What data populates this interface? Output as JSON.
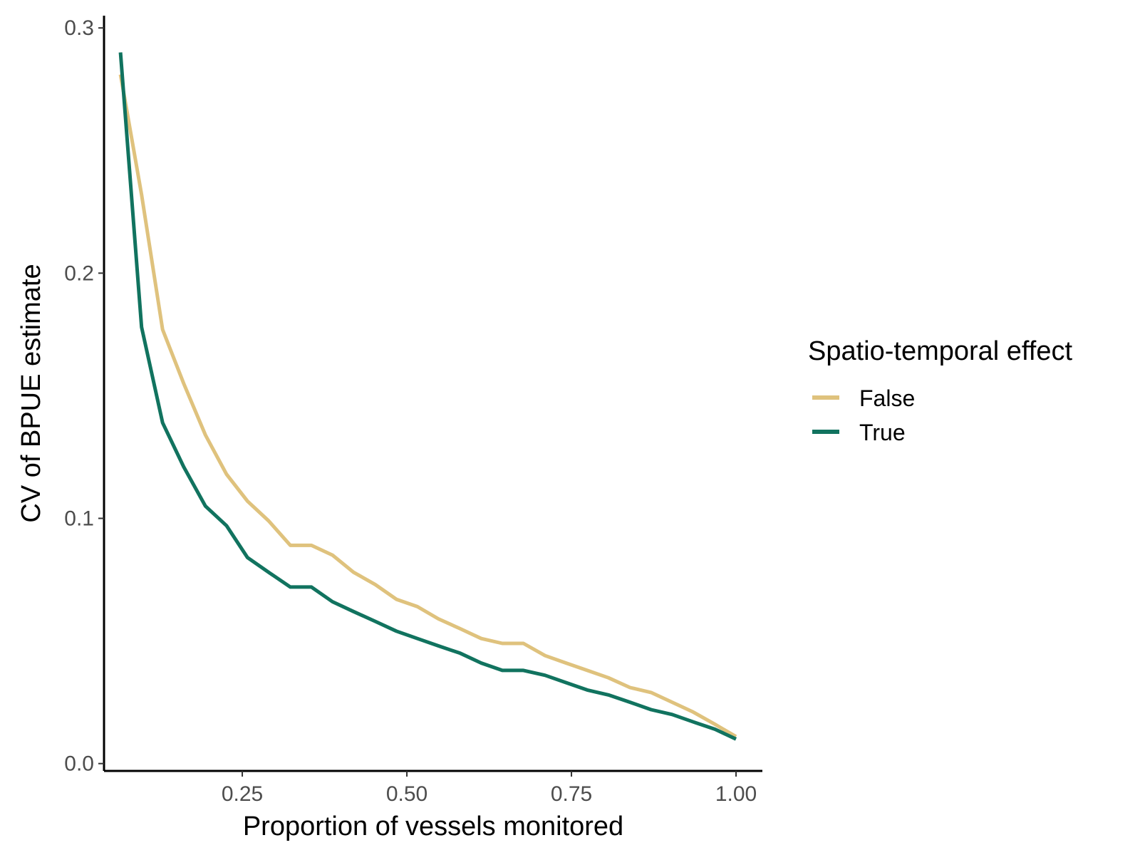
{
  "chart_data": {
    "type": "line",
    "xlabel": "Proportion of vessels monitored",
    "ylabel": "CV of BPUE estimate",
    "xlim": [
      0.04,
      1.04
    ],
    "ylim": [
      -0.003,
      0.305
    ],
    "x_ticks": [
      0.25,
      0.5,
      0.75,
      1.0
    ],
    "x_tick_labels": [
      "0.25",
      "0.50",
      "0.75",
      "1.00"
    ],
    "y_ticks": [
      0.0,
      0.1,
      0.2,
      0.3
    ],
    "y_tick_labels": [
      "0.0",
      "0.1",
      "0.2",
      "0.3"
    ],
    "grid": false,
    "legend": {
      "title": "Spatio-temporal effect",
      "position": "right"
    },
    "series": [
      {
        "name": "False",
        "color": "#DFC27D",
        "x": [
          0.065,
          0.097,
          0.129,
          0.161,
          0.194,
          0.226,
          0.258,
          0.29,
          0.323,
          0.355,
          0.387,
          0.419,
          0.452,
          0.484,
          0.516,
          0.548,
          0.581,
          0.613,
          0.645,
          0.677,
          0.71,
          0.742,
          0.774,
          0.806,
          0.839,
          0.871,
          0.903,
          0.935,
          0.968,
          1.0
        ],
        "y": [
          0.281,
          0.232,
          0.177,
          0.155,
          0.134,
          0.118,
          0.107,
          0.099,
          0.089,
          0.089,
          0.085,
          0.078,
          0.073,
          0.067,
          0.064,
          0.059,
          0.055,
          0.051,
          0.049,
          0.049,
          0.044,
          0.041,
          0.038,
          0.035,
          0.031,
          0.029,
          0.025,
          0.021,
          0.016,
          0.011
        ]
      },
      {
        "name": "True",
        "color": "#11735F",
        "x": [
          0.065,
          0.097,
          0.129,
          0.161,
          0.194,
          0.226,
          0.258,
          0.29,
          0.323,
          0.355,
          0.387,
          0.419,
          0.452,
          0.484,
          0.516,
          0.548,
          0.581,
          0.613,
          0.645,
          0.677,
          0.71,
          0.742,
          0.774,
          0.806,
          0.839,
          0.871,
          0.903,
          0.935,
          0.968,
          1.0
        ],
        "y": [
          0.29,
          0.178,
          0.139,
          0.121,
          0.105,
          0.097,
          0.084,
          0.078,
          0.072,
          0.072,
          0.066,
          0.062,
          0.058,
          0.054,
          0.051,
          0.048,
          0.045,
          0.041,
          0.038,
          0.038,
          0.036,
          0.033,
          0.03,
          0.028,
          0.025,
          0.022,
          0.02,
          0.017,
          0.014,
          0.01
        ]
      }
    ]
  }
}
